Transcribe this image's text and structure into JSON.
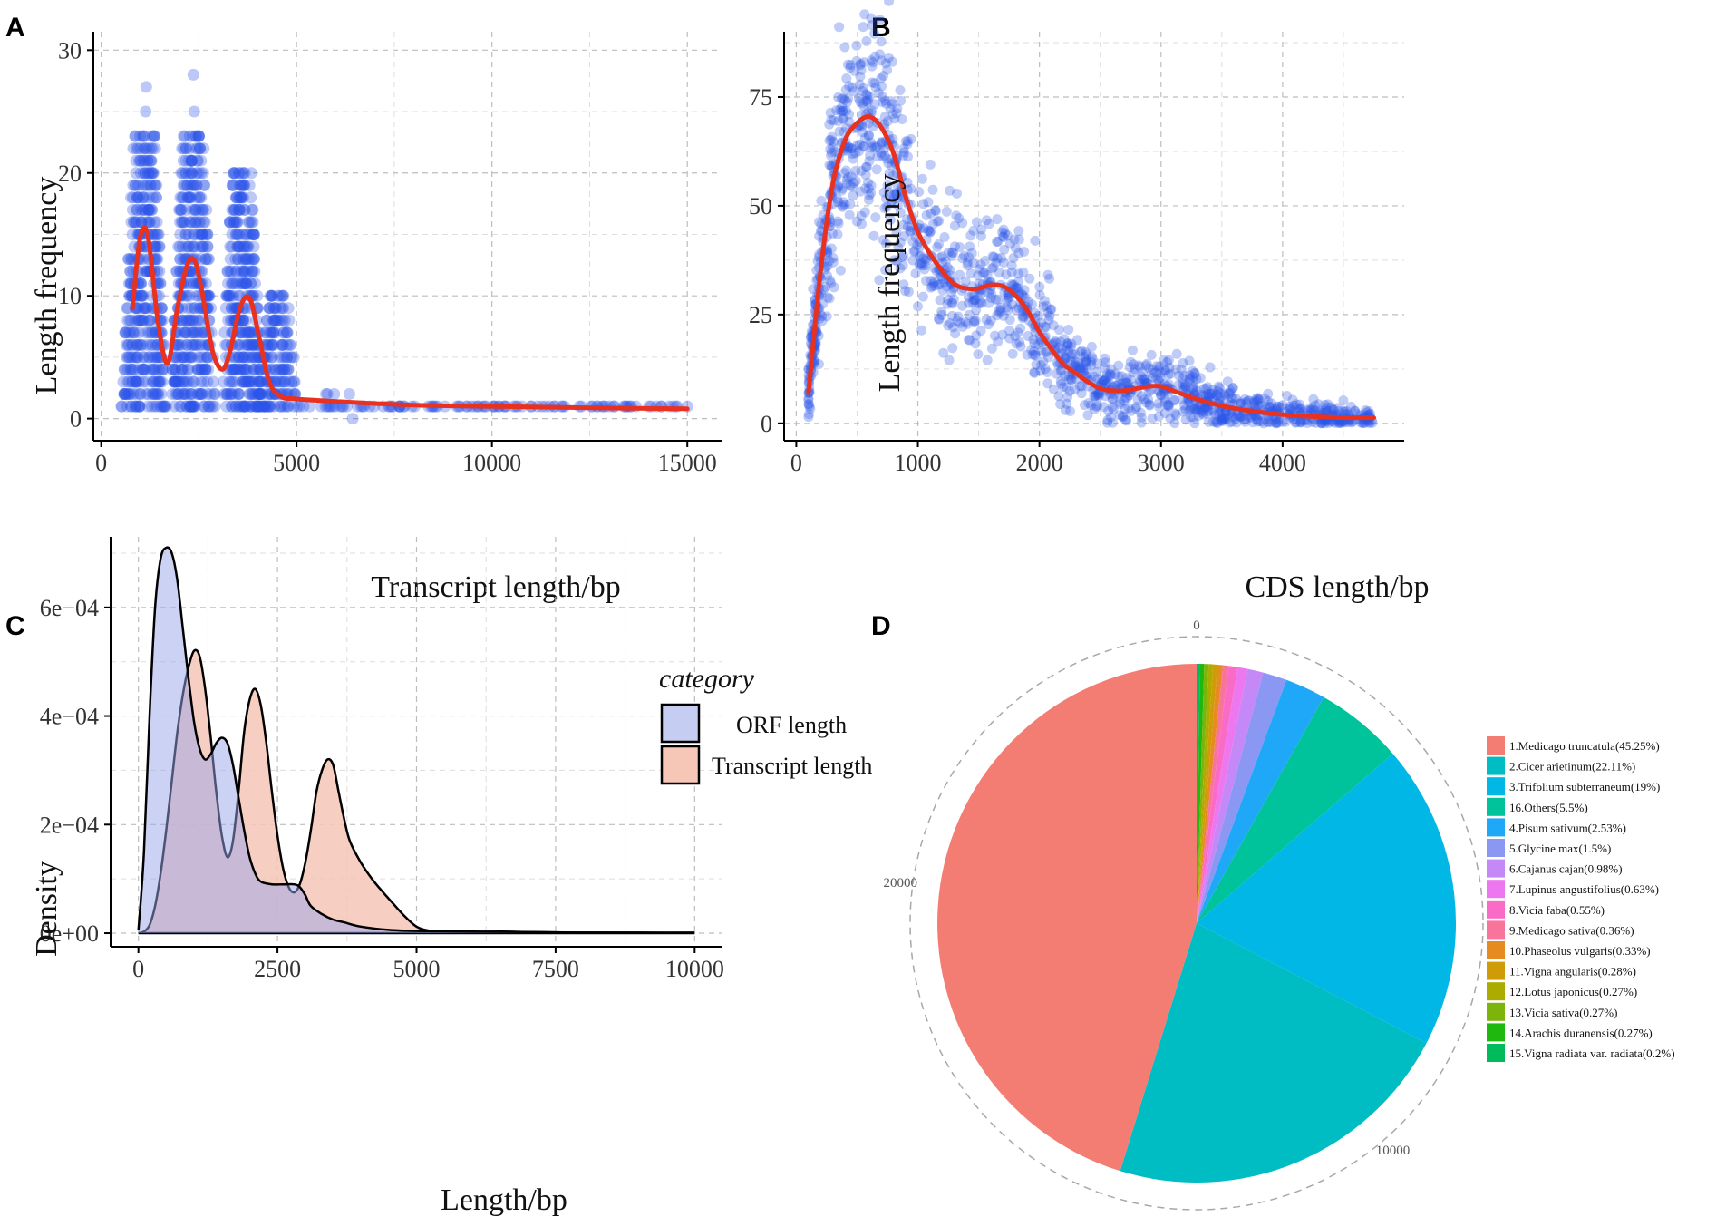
{
  "panels": {
    "A": {
      "letter": "A"
    },
    "B": {
      "letter": "B"
    },
    "C": {
      "letter": "C"
    },
    "D": {
      "letter": "D"
    }
  },
  "colors": {
    "points": "#2b55e8",
    "curve": "#e8311f",
    "orf_fill": "#c5cdf3",
    "transcript_fill": "#f6c6b7",
    "overlap_fill": "#c9a9c9"
  },
  "chart_data": [
    {
      "id": "A",
      "type": "scatter",
      "title": "",
      "xlabel": "Transcript length/bp",
      "ylabel": "Length frequency",
      "xlim": [
        -200,
        15900
      ],
      "ylim": [
        -1.8,
        31.5
      ],
      "xticks": [
        0,
        5000,
        10000,
        15000
      ],
      "yticks": [
        0,
        10,
        20,
        30
      ],
      "xtick_labels": [
        "0",
        "5000",
        "10000",
        "15000"
      ],
      "ytick_labels": [
        "0",
        "10",
        "20",
        "30"
      ],
      "point_clusters": [
        {
          "x_center": 1100,
          "x_half_width": 600,
          "y_max": 23,
          "outliers": [
            27,
            25
          ]
        },
        {
          "x_center": 2350,
          "x_half_width": 600,
          "y_max": 23,
          "outliers": [
            28,
            25
          ]
        },
        {
          "x_center": 3600,
          "x_half_width": 550,
          "y_max": 20,
          "outliers": []
        },
        {
          "x_center": 4500,
          "x_half_width": 600,
          "y_max": 10,
          "outliers": []
        }
      ],
      "point_tail": {
        "x_from": 5000,
        "x_to": 15000,
        "y_values": [
          0,
          1,
          2
        ]
      },
      "smooth_curve": {
        "x": [
          800,
          1000,
          1200,
          1450,
          1700,
          1950,
          2200,
          2400,
          2600,
          2850,
          3100,
          3300,
          3550,
          3800,
          4050,
          4300,
          4600,
          5000,
          6000,
          8000,
          10000,
          12000,
          15000
        ],
        "y": [
          9,
          14.8,
          14.8,
          8,
          4.5,
          9,
          12.5,
          12.8,
          10,
          5.5,
          4,
          5.5,
          9,
          9.8,
          6.5,
          3,
          1.8,
          1.6,
          1.4,
          1.1,
          1.0,
          0.9,
          0.8
        ]
      }
    },
    {
      "id": "B",
      "type": "scatter",
      "title": "",
      "xlabel": "CDS length/bp",
      "ylabel": "Length frequency",
      "xlim": [
        -100,
        5000
      ],
      "ylim": [
        -4,
        90
      ],
      "xticks": [
        0,
        1000,
        2000,
        3000,
        4000
      ],
      "yticks": [
        0,
        25,
        50,
        75
      ],
      "xtick_labels": [
        "0",
        "1000",
        "2000",
        "3000",
        "4000"
      ],
      "ytick_labels": [
        "0",
        "25",
        "50",
        "75"
      ],
      "point_cloud": {
        "x_from": 100,
        "x_to": 4750,
        "spread": 8
      },
      "smooth_curve": {
        "x": [
          100,
          200,
          300,
          400,
          500,
          600,
          700,
          800,
          900,
          1000,
          1100,
          1200,
          1300,
          1400,
          1500,
          1600,
          1700,
          1800,
          1900,
          2000,
          2100,
          2200,
          2300,
          2400,
          2500,
          2600,
          2700,
          2800,
          2900,
          3000,
          3100,
          3300,
          3500,
          3700,
          4000,
          4300,
          4500,
          4750
        ],
        "y": [
          7,
          35,
          55,
          65,
          69,
          70.5,
          68,
          62,
          52,
          44,
          39,
          35,
          32,
          31,
          31,
          31.8,
          31.5,
          29.5,
          26,
          21,
          17,
          13.5,
          11.5,
          9.5,
          8,
          7.5,
          7.5,
          8,
          8.5,
          8.5,
          7.5,
          5.5,
          4,
          3,
          2,
          1.5,
          1.3,
          1.3
        ]
      }
    },
    {
      "id": "C",
      "type": "area",
      "title": "",
      "xlabel": "Length/bp",
      "ylabel": "Density",
      "xlim": [
        -500,
        10500
      ],
      "ylim": [
        -2.5e-05,
        0.00073
      ],
      "xticks": [
        0,
        2500,
        5000,
        7500,
        10000
      ],
      "yticks": [
        0,
        0.0002,
        0.0004,
        0.0006
      ],
      "xtick_labels": [
        "0",
        "2500",
        "5000",
        "7500",
        "10000"
      ],
      "ytick_labels": [
        "0e+00",
        "2e−04",
        "4e−04",
        "6e−04"
      ],
      "legend": {
        "title": "category",
        "position": "top-right",
        "entries": [
          "ORF length",
          "Transcript length"
        ]
      },
      "series": [
        {
          "name": "ORF length",
          "x": [
            0,
            100,
            200,
            300,
            400,
            500,
            600,
            700,
            800,
            900,
            1000,
            1100,
            1200,
            1300,
            1400,
            1500,
            1600,
            1700,
            1800,
            1900,
            2000,
            2100,
            2200,
            2400,
            2600,
            2800,
            2900,
            3000,
            3100,
            3300,
            3500,
            3700,
            4000,
            4500,
            5000,
            6000,
            7000,
            8000,
            10000
          ],
          "y": [
            5e-06,
            0.00015,
            0.0004,
            0.0006,
            0.00069,
            0.00071,
            0.0007,
            0.00065,
            0.00056,
            0.00047,
            0.00039,
            0.00034,
            0.00032,
            0.00033,
            0.00035,
            0.00036,
            0.00035,
            0.00031,
            0.00025,
            0.00019,
            0.00014,
            0.00011,
            9.5e-05,
            9e-05,
            9e-05,
            9e-05,
            8.5e-05,
            7e-05,
            5e-05,
            3.5e-05,
            2.5e-05,
            2e-05,
            1.2e-05,
            6e-06,
            4e-06,
            3e-06,
            2e-06,
            1e-06,
            1e-06
          ]
        },
        {
          "name": "Transcript length",
          "x": [
            0,
            100,
            200,
            300,
            400,
            500,
            600,
            700,
            800,
            900,
            1000,
            1100,
            1200,
            1300,
            1400,
            1500,
            1600,
            1700,
            1800,
            1900,
            2000,
            2100,
            2200,
            2300,
            2400,
            2500,
            2600,
            2700,
            2800,
            2900,
            3000,
            3100,
            3200,
            3300,
            3400,
            3500,
            3600,
            3700,
            3800,
            4000,
            4200,
            4400,
            4600,
            4800,
            5000,
            5200,
            5500,
            6000,
            6500,
            7000,
            8000,
            9000,
            10000
          ],
          "y": [
            0,
            3e-06,
            1.5e-05,
            5e-05,
            0.00011,
            0.00019,
            0.00028,
            0.00037,
            0.00044,
            0.00049,
            0.00052,
            0.00051,
            0.00045,
            0.00036,
            0.00026,
            0.00018,
            0.00014,
            0.00017,
            0.00026,
            0.00037,
            0.00043,
            0.00045,
            0.00042,
            0.00035,
            0.00026,
            0.00018,
            0.00012,
            8.5e-05,
            7.5e-05,
            9e-05,
            0.00013,
            0.00019,
            0.00026,
            0.0003,
            0.00032,
            0.00031,
            0.00026,
            0.00021,
            0.00017,
            0.00013,
            0.0001,
            7.5e-05,
            5.2e-05,
            3e-05,
            1.2e-05,
            5e-06,
            3e-06,
            2e-06,
            3e-06,
            2e-06,
            1e-06,
            1e-06,
            0
          ]
        }
      ]
    },
    {
      "id": "D",
      "type": "pie",
      "title": "",
      "ring_tick_labels": [
        "0",
        "10000",
        "20000"
      ],
      "ring_tick_values": [
        0,
        10000,
        20000
      ],
      "total_count": 25900,
      "legend": {
        "position": "right"
      },
      "slices": [
        {
          "label": "1.Medicago truncatula(45.25%)",
          "value": 45.25,
          "color": "#f37d73"
        },
        {
          "label": "2.Cicer arietinum(22.11%)",
          "value": 22.11,
          "color": "#00bcc3"
        },
        {
          "label": "3.Trifolium subterraneum(19%)",
          "value": 19.0,
          "color": "#00b7e6"
        },
        {
          "label": "16.Others(5.5%)",
          "value": 5.5,
          "color": "#00c29b"
        },
        {
          "label": "4.Pisum sativum(2.53%)",
          "value": 2.53,
          "color": "#20a8f8"
        },
        {
          "label": "5.Glycine max(1.5%)",
          "value": 1.5,
          "color": "#8a98f3"
        },
        {
          "label": "6.Cajanus cajan(0.98%)",
          "value": 0.98,
          "color": "#c489f7"
        },
        {
          "label": "7.Lupinus angustifolius(0.63%)",
          "value": 0.63,
          "color": "#ed77ee"
        },
        {
          "label": "8.Vicia faba(0.55%)",
          "value": 0.55,
          "color": "#fa6bc8"
        },
        {
          "label": "9.Medicago sativa(0.36%)",
          "value": 0.36,
          "color": "#f8749b"
        },
        {
          "label": "10.Phaseolus vulgaris(0.33%)",
          "value": 0.33,
          "color": "#e58b1f"
        },
        {
          "label": "11.Vigna angularis(0.28%)",
          "value": 0.28,
          "color": "#cf9c07"
        },
        {
          "label": "12.Lotus japonicus(0.27%)",
          "value": 0.27,
          "color": "#acac00"
        },
        {
          "label": "13.Vicia sativa(0.27%)",
          "value": 0.27,
          "color": "#7db40c"
        },
        {
          "label": "14.Arachis duranensis(0.27%)",
          "value": 0.27,
          "color": "#1fb80e"
        },
        {
          "label": "15.Vigna radiata var. radiata(0.2%)",
          "value": 0.2,
          "color": "#00bb5b"
        }
      ]
    }
  ]
}
